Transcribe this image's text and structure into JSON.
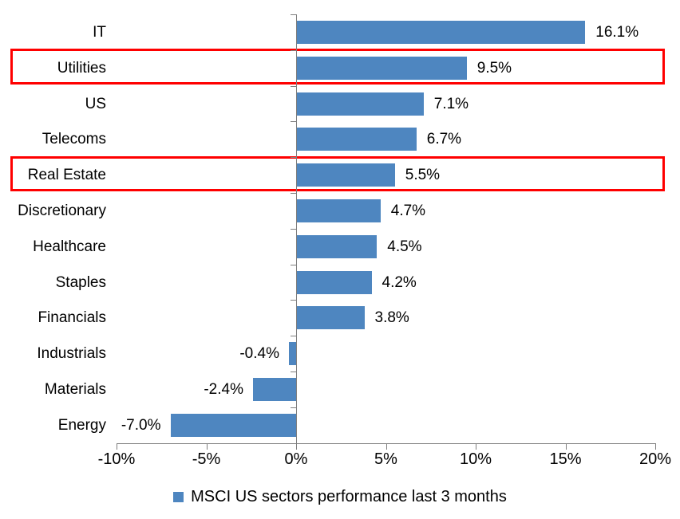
{
  "chart_data": {
    "type": "bar",
    "orientation": "horizontal",
    "title": "",
    "categories": [
      "IT",
      "Utilities",
      "US",
      "Telecoms",
      "Real Estate",
      "Discretionary",
      "Healthcare",
      "Staples",
      "Financials",
      "Industrials",
      "Materials",
      "Energy"
    ],
    "values": [
      16.1,
      9.5,
      7.1,
      6.7,
      5.5,
      4.7,
      4.5,
      4.2,
      3.8,
      -0.4,
      -2.4,
      -7.0
    ],
    "value_labels": [
      "16.1%",
      "9.5%",
      "7.1%",
      "6.7%",
      "5.5%",
      "4.7%",
      "4.5%",
      "4.2%",
      "3.8%",
      "-0.4%",
      "-2.4%",
      "-7.0%"
    ],
    "highlighted_categories": [
      "Utilities",
      "Real Estate"
    ],
    "x_axis": {
      "min": -10,
      "max": 20,
      "tick_values": [
        -10,
        -5,
        0,
        5,
        10,
        15,
        20
      ],
      "tick_labels": [
        "-10%",
        "-5%",
        "0%",
        "5%",
        "10%",
        "15%",
        "20%"
      ]
    },
    "legend": {
      "label": "MSCI US sectors performance last 3 months",
      "position": "bottom"
    },
    "colors": {
      "bar": "#4E86C0",
      "highlight_box": "#FF0000",
      "axis": "#7F7F7F",
      "text": "#000000"
    },
    "grid": false
  }
}
